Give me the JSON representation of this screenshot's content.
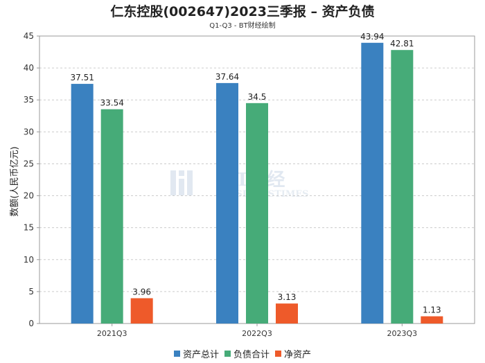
{
  "header": {
    "title": "仁东控股(002647)2023三季报 – 资产负债",
    "subtitle": "Q1-Q3 - BT财经绘制"
  },
  "watermark": {
    "main": "BT财经",
    "sub": "BUSINESSTIMES"
  },
  "chart_data": {
    "type": "bar",
    "categories": [
      "2021Q3",
      "2022Q3",
      "2023Q3"
    ],
    "series": [
      {
        "name": "资产总计",
        "color": "#3a81c0",
        "values": [
          37.51,
          37.64,
          43.94
        ]
      },
      {
        "name": "负债合计",
        "color": "#46ab78",
        "values": [
          33.54,
          34.5,
          42.81
        ]
      },
      {
        "name": "净资产",
        "color": "#ee5a2a",
        "values": [
          3.96,
          3.13,
          1.13
        ]
      }
    ],
    "ylabel": "数额(人民币亿元)",
    "ylim": [
      0,
      45
    ],
    "yticks": [
      0,
      5,
      10,
      15,
      20,
      25,
      30,
      35,
      40,
      45
    ],
    "grid": true,
    "legend": "bottom"
  }
}
